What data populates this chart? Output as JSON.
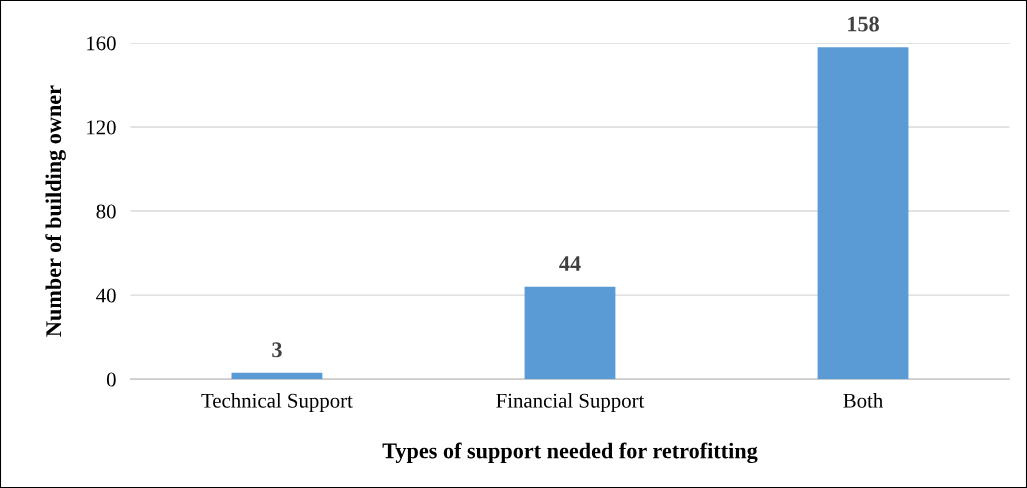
{
  "chart_data": {
    "type": "bar",
    "xlabel": "Types of support needed for retrofitting",
    "ylabel": "Number of building owner",
    "categories": [
      "Technical Support",
      "Financial Support",
      "Both"
    ],
    "values": [
      3,
      44,
      158
    ],
    "color": "#5b9bd5",
    "ylim": [
      0,
      160
    ],
    "yticks": [
      0,
      40,
      80,
      120,
      160
    ],
    "grid": "y",
    "data_labels": true
  }
}
